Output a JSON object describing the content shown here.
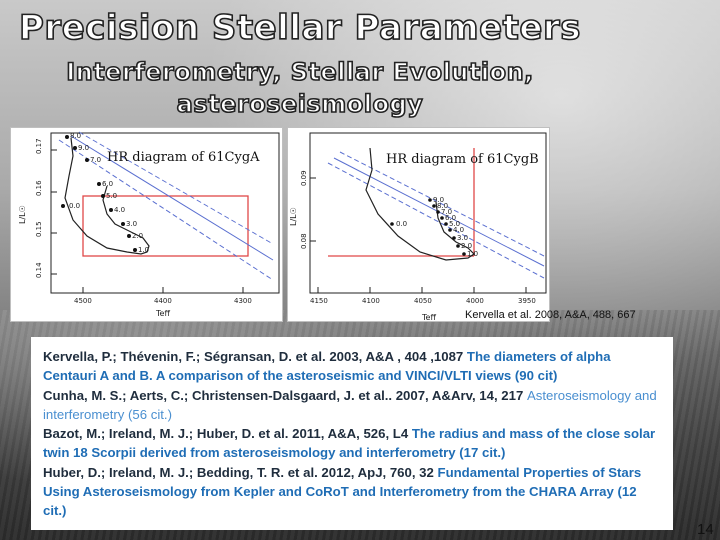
{
  "title": "Precision Stellar Parameters",
  "subtitle_line1": "Interferometry, Stellar Evolution,",
  "subtitle_line2": "asteroseismology",
  "plots": [
    {
      "title": "HR diagram of 61CygA",
      "y_ticks": [
        "0.17",
        "0.16",
        "0.15",
        "0.14"
      ],
      "x_ticks": [
        "4500",
        "4400",
        "4300"
      ],
      "y_label": "L/L☉",
      "x_label": "Teff",
      "track_labels": [
        "8.0",
        "9.0",
        "7.0",
        "6.0",
        "0.0",
        "5.0",
        "4.0",
        "3.0",
        "2.0",
        "1.0"
      ]
    },
    {
      "title": "HR diagram of 61CygB",
      "y_ticks": [
        "0.09",
        "0.08"
      ],
      "x_ticks": [
        "4150",
        "4100",
        "4050",
        "4000",
        "3950"
      ],
      "y_label": "L/L☉",
      "x_label": "Teff",
      "track_labels": [
        "9.0",
        "8.0",
        "7.0",
        "6.0",
        "0.0",
        "5.0",
        "4.0",
        "3.0",
        "2.0",
        "1.0"
      ]
    }
  ],
  "credit": "Kervella et al. 2008, A&A, 488, 667",
  "references": [
    {
      "authors": "Kervella, P.; Thévenin, F.; Ségransan, D. et al. 2003, A&A , 404 ,1087 ",
      "title": "The diameters of alpha Centauri A and B. A comparison of the asteroseismic and VINCI/VLTI views (90 cit)",
      "style": "bold"
    },
    {
      "authors": "Cunha, M. S.; Aerts, C.; Christensen-Dalsgaard, J. et al.. 2007, A&Arv, 14, 217 ",
      "title": "Asteroseismology and interferometry (56 cit.)",
      "style": "light"
    },
    {
      "authors": "Bazot, M.; Ireland, M. J.; Huber, D. et al. 2011, A&A, 526, L4 ",
      "title": "The radius and mass of the close solar twin 18 Scorpii derived from asteroseismology and interferometry (17 cit.)",
      "style": "bold"
    },
    {
      "authors": "Huber, D.; Ireland, M. J.; Bedding, T. R. et al. 2012, ApJ, 760, 32 ",
      "title": "Fundamental Properties of Stars Using Asteroseismology from Kepler and CoRoT and Interferometry from the CHARA Array (12 cit.)",
      "style": "bold"
    }
  ],
  "page_number": "14"
}
